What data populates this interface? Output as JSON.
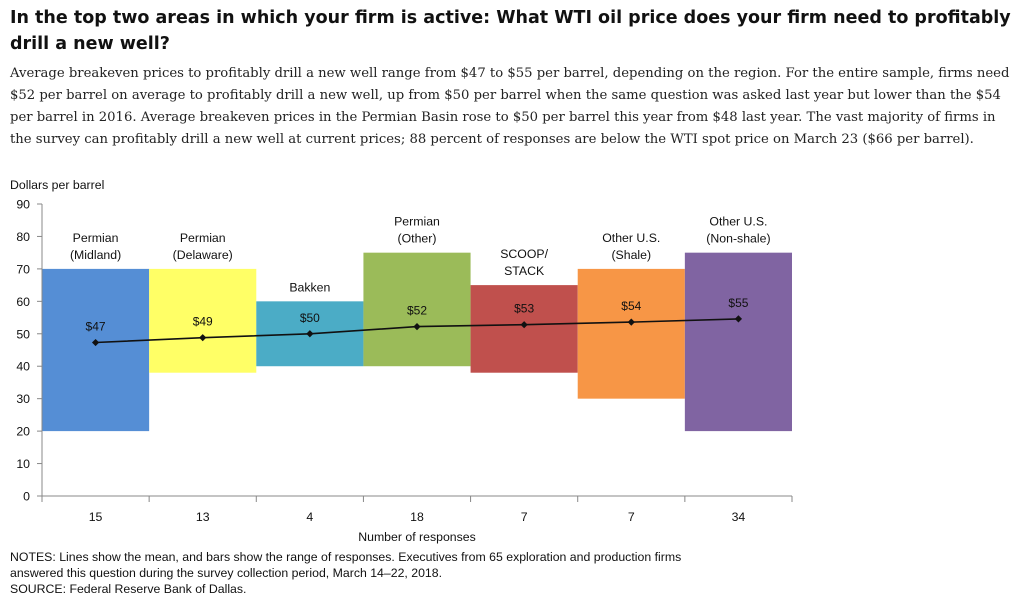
{
  "title": "In the top two areas in which your firm is active: What WTI oil price does your firm need to profitably drill a new well?",
  "description": "Average breakeven prices to profitably drill a new well range from $47 to $55 per barrel, depending on the region. For the entire sample, firms need $52 per barrel on average to profitably drill a new well, up from $50 per barrel when the same question was asked last year but lower than the $54 per barrel in 2016. Average breakeven prices in the Permian Basin rose to $50 per barrel this year from $48 last year. The vast majority of firms in the survey can profitably drill a new well at current prices; 88 percent of responses are below the WTI spot price on March 23 ($66 per barrel).",
  "chart_data": {
    "type": "bar",
    "subtype": "floating range bars with mean line",
    "ylabel": "Dollars per barrel",
    "xlabel": "Number of responses",
    "ylim": [
      0,
      90
    ],
    "yticks": [
      0,
      10,
      20,
      30,
      40,
      50,
      60,
      70,
      80,
      90
    ],
    "grid": false,
    "mean_marker_color": "#111111",
    "categories": [
      {
        "label": [
          "Permian",
          "(Midland)"
        ],
        "responses": "15",
        "low": 20,
        "high": 70,
        "mean": 47.3,
        "mean_label": "$47",
        "color": "#558ED5"
      },
      {
        "label": [
          "Permian",
          "(Delaware)"
        ],
        "responses": "13",
        "low": 38,
        "high": 70,
        "mean": 48.8,
        "mean_label": "$49",
        "color": "#FFFF66"
      },
      {
        "label": [
          "Bakken"
        ],
        "responses": "4",
        "low": 40,
        "high": 60,
        "mean": 50,
        "mean_label": "$50",
        "color": "#4BACC6"
      },
      {
        "label": [
          "Permian",
          "(Other)"
        ],
        "responses": "18",
        "low": 40,
        "high": 75,
        "mean": 52.2,
        "mean_label": "$52",
        "color": "#9BBB59"
      },
      {
        "label": [
          "SCOOP/",
          "STACK"
        ],
        "responses": "7",
        "low": 38,
        "high": 65,
        "mean": 52.8,
        "mean_label": "$53",
        "color": "#C0504D"
      },
      {
        "label": [
          "Other U.S.",
          "(Shale)"
        ],
        "responses": "7",
        "low": 30,
        "high": 70,
        "mean": 53.6,
        "mean_label": "$54",
        "color": "#F79646"
      },
      {
        "label": [
          "Other U.S.",
          "(Non-shale)"
        ],
        "responses": "34",
        "low": 20,
        "high": 75,
        "mean": 54.6,
        "mean_label": "$55",
        "color": "#8064A2"
      }
    ]
  },
  "notes": {
    "line1": "NOTES: Lines show the mean, and bars show the range of responses. Executives from 65 exploration and production firms",
    "line2": "answered this question during the survey collection period, March 14–22, 2018.",
    "source": "SOURCE: Federal Reserve Bank of Dallas."
  }
}
